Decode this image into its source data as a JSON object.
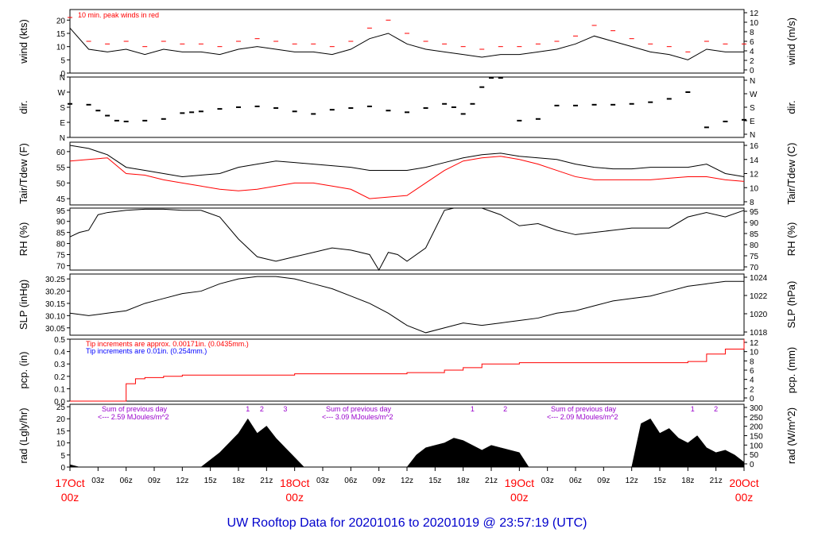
{
  "title": "UW Rooftop Data for 20201016  to  20201019 @ 23:57:19  (UTC)",
  "colors": {
    "black": "#000000",
    "red": "#ff0000",
    "blue": "#0000ff",
    "purple": "#9900cc",
    "title": "#0000cc"
  },
  "chart_data": [
    {
      "type": "line",
      "panel": "wind",
      "ylabel_left": "wind (kts)",
      "ylabel_right": "wind (m/s)",
      "ylim": [
        0,
        24
      ],
      "yticks_left": [
        0,
        5,
        10,
        15,
        20
      ],
      "yticks_right": [
        "0",
        "2",
        "4",
        "6",
        "8",
        "10",
        "12"
      ],
      "annotation": "10 min. peak winds in red",
      "series": [
        {
          "name": "wind",
          "x": [
            0,
            2,
            4,
            6,
            8,
            10,
            12,
            14,
            16,
            18,
            20,
            22,
            24,
            26,
            28,
            30,
            32,
            34,
            36,
            38,
            40,
            42,
            44,
            46,
            48,
            50,
            52,
            54,
            56,
            58,
            60,
            62,
            64,
            66,
            68,
            70,
            72
          ],
          "y": [
            17,
            9,
            8,
            9,
            7,
            9,
            8,
            8,
            7,
            9,
            10,
            9,
            8,
            8,
            7,
            9,
            13,
            15,
            11,
            9,
            8,
            7,
            6,
            7,
            7,
            8,
            9,
            11,
            14,
            12,
            10,
            8,
            7,
            5,
            9,
            8,
            8
          ]
        },
        {
          "name": "peak",
          "x": [
            0,
            2,
            4,
            6,
            8,
            10,
            12,
            14,
            16,
            18,
            20,
            22,
            24,
            26,
            28,
            30,
            32,
            34,
            36,
            38,
            40,
            42,
            44,
            46,
            48,
            50,
            52,
            54,
            56,
            58,
            60,
            62,
            64,
            66,
            68,
            70,
            72
          ],
          "y": [
            21,
            12,
            11,
            12,
            10,
            12,
            11,
            11,
            10,
            12,
            13,
            12,
            11,
            11,
            10,
            12,
            17,
            20,
            15,
            12,
            11,
            10,
            9,
            10,
            10,
            11,
            12,
            14,
            18,
            16,
            13,
            11,
            10,
            8,
            12,
            11,
            11
          ]
        }
      ]
    },
    {
      "type": "scatter",
      "panel": "dir",
      "ylabel_left": "dir.",
      "ylabel_right": "dir.",
      "ylim": [
        0,
        360
      ],
      "yticks_left": [
        "N",
        "E",
        "S",
        "W",
        "N"
      ],
      "yticks_right": [
        "N",
        "E",
        "S",
        "W",
        "N"
      ],
      "series": [
        {
          "name": "direction",
          "x": [
            0,
            2,
            3,
            4,
            5,
            6,
            8,
            10,
            12,
            13,
            14,
            16,
            18,
            20,
            22,
            24,
            26,
            28,
            30,
            32,
            34,
            36,
            38,
            40,
            41,
            42,
            43,
            44,
            45,
            46,
            48,
            50,
            52,
            54,
            56,
            58,
            60,
            62,
            64,
            66,
            68,
            70,
            72
          ],
          "y": [
            200,
            195,
            160,
            130,
            100,
            95,
            100,
            110,
            145,
            150,
            155,
            170,
            180,
            185,
            175,
            155,
            140,
            165,
            175,
            185,
            160,
            150,
            175,
            200,
            180,
            140,
            200,
            300,
            355,
            355,
            100,
            110,
            190,
            190,
            195,
            195,
            200,
            210,
            230,
            270,
            60,
            95,
            105
          ]
        }
      ]
    },
    {
      "type": "line",
      "panel": "temp",
      "ylabel_left": "Tair/Tdew (F)",
      "ylabel_right": "Tair/Tdew (C)",
      "ylim": [
        43,
        63
      ],
      "yticks_left": [
        45,
        50,
        55,
        60
      ],
      "yticks_right": [
        "8",
        "10",
        "12",
        "14",
        "16"
      ],
      "series": [
        {
          "name": "Tair",
          "x": [
            0,
            2,
            4,
            6,
            8,
            10,
            12,
            14,
            16,
            18,
            20,
            22,
            24,
            26,
            28,
            30,
            32,
            34,
            36,
            38,
            40,
            42,
            44,
            46,
            48,
            50,
            52,
            54,
            56,
            58,
            60,
            62,
            64,
            66,
            68,
            70,
            72
          ],
          "y": [
            62,
            61,
            59,
            55,
            54,
            53,
            52,
            52.5,
            53,
            55,
            56,
            57,
            56.5,
            56,
            55.5,
            55,
            54,
            54,
            54,
            55,
            56.5,
            58,
            59,
            59.5,
            58.5,
            58,
            57.5,
            56,
            55,
            54.5,
            54.5,
            55,
            55,
            55,
            56,
            53,
            52
          ]
        },
        {
          "name": "Tdew",
          "x": [
            0,
            2,
            4,
            6,
            8,
            10,
            12,
            14,
            16,
            18,
            20,
            22,
            24,
            26,
            28,
            30,
            32,
            34,
            36,
            38,
            40,
            42,
            44,
            46,
            48,
            50,
            52,
            54,
            56,
            58,
            60,
            62,
            64,
            66,
            68,
            70,
            72
          ],
          "y": [
            57,
            57.5,
            58,
            53,
            52.5,
            51,
            50,
            49,
            48,
            47.5,
            48,
            49,
            50,
            50,
            49,
            48,
            45,
            45.5,
            46,
            50,
            54,
            57,
            58,
            58.5,
            57.5,
            56,
            54,
            52,
            51,
            51,
            51,
            51,
            51.5,
            52,
            52,
            51,
            50.5
          ]
        }
      ]
    },
    {
      "type": "line",
      "panel": "rh",
      "ylabel_left": "RH (%)",
      "ylabel_right": "RH (%)",
      "ylim": [
        68,
        96
      ],
      "yticks_left": [
        70,
        75,
        80,
        85,
        90,
        95
      ],
      "yticks_right": [
        "70",
        "75",
        "80",
        "85",
        "90",
        "95"
      ],
      "series": [
        {
          "name": "RH",
          "x": [
            0,
            1,
            2,
            3,
            4,
            6,
            8,
            10,
            12,
            14,
            16,
            18,
            20,
            22,
            24,
            26,
            28,
            30,
            32,
            33,
            34,
            35,
            36,
            38,
            40,
            41,
            42,
            44,
            46,
            48,
            50,
            52,
            54,
            56,
            58,
            60,
            62,
            64,
            66,
            68,
            70,
            72
          ],
          "y": [
            83,
            85,
            86,
            93,
            94,
            95,
            95.5,
            95.5,
            95,
            95,
            92,
            82,
            74,
            72,
            74,
            76,
            78,
            77,
            75,
            68,
            76,
            75,
            72,
            78,
            95,
            96,
            96,
            96,
            93,
            88,
            89,
            86,
            84,
            85,
            86,
            87,
            87,
            87,
            92,
            94,
            92,
            95
          ]
        }
      ]
    },
    {
      "type": "line",
      "panel": "slp",
      "ylabel_left": "SLP (inHg)",
      "ylabel_right": "SLP (hPa)",
      "ylim": [
        30.02,
        30.27
      ],
      "yticks_left": [
        "30.05",
        "30.10",
        "30.15",
        "30.20",
        "30.25"
      ],
      "yticks_right": [
        "1018",
        "1020",
        "1022",
        "1024"
      ],
      "series": [
        {
          "name": "SLP",
          "x": [
            0,
            2,
            4,
            6,
            8,
            10,
            12,
            14,
            16,
            18,
            20,
            22,
            24,
            26,
            28,
            30,
            32,
            34,
            36,
            38,
            40,
            42,
            44,
            46,
            48,
            50,
            52,
            54,
            56,
            58,
            60,
            62,
            64,
            66,
            68,
            70,
            72
          ],
          "y": [
            30.11,
            30.1,
            30.11,
            30.12,
            30.15,
            30.17,
            30.19,
            30.2,
            30.23,
            30.25,
            30.26,
            30.26,
            30.25,
            30.23,
            30.21,
            30.18,
            30.15,
            30.11,
            30.06,
            30.03,
            30.05,
            30.07,
            30.06,
            30.07,
            30.08,
            30.09,
            30.11,
            30.12,
            30.14,
            30.16,
            30.17,
            30.18,
            30.2,
            30.22,
            30.23,
            30.24,
            30.24
          ]
        }
      ]
    },
    {
      "type": "line",
      "panel": "pcp",
      "ylabel_left": "pcp. (in)",
      "ylabel_right": "pcp. (mm)",
      "ylim": [
        0,
        0.5
      ],
      "yticks_left": [
        "0.0",
        "0.1",
        "0.2",
        "0.3",
        "0.4",
        "0.5"
      ],
      "yticks_right": [
        "0",
        "2",
        "4",
        "6",
        "8",
        "10",
        "12"
      ],
      "annotation_red": "Tip increments are approx. 0.00171in. (0.0435mm.)",
      "annotation_blue": "Tip increments are 0.01in. (0.254mm.)",
      "series": [
        {
          "name": "pcp",
          "x": [
            0,
            5,
            6,
            7,
            8,
            10,
            12,
            18,
            24,
            30,
            36,
            40,
            42,
            44,
            48,
            54,
            60,
            66,
            68,
            70,
            72
          ],
          "y": [
            0,
            0,
            0.14,
            0.18,
            0.19,
            0.2,
            0.21,
            0.21,
            0.22,
            0.22,
            0.23,
            0.25,
            0.27,
            0.3,
            0.31,
            0.31,
            0.31,
            0.32,
            0.38,
            0.42,
            0.5
          ]
        }
      ]
    },
    {
      "type": "area",
      "panel": "rad",
      "ylabel_left": "rad (Lgly/hr)",
      "ylabel_right": "rad (W/m^2)",
      "ylim": [
        0,
        26
      ],
      "yticks_left": [
        0,
        5,
        10,
        15,
        20,
        25
      ],
      "yticks_right": [
        "0",
        "50",
        "100",
        "150",
        "200",
        "250",
        "300"
      ],
      "day_sums": [
        {
          "label": "Sum of previous day",
          "value": "<--- 2.59 MJoules/m^2"
        },
        {
          "label": "Sum of previous day",
          "value": "<--- 3.09 MJoules/m^2"
        },
        {
          "label": "Sum of previous day",
          "value": "<--- 2.09 MJoules/m^2"
        }
      ],
      "markers": [
        {
          "text": "1",
          "x": 19
        },
        {
          "text": "2",
          "x": 20.5
        },
        {
          "text": "3",
          "x": 23
        },
        {
          "text": "1",
          "x": 43
        },
        {
          "text": "2",
          "x": 46.5
        },
        {
          "text": "1",
          "x": 66.5
        },
        {
          "text": "2",
          "x": 69
        }
      ],
      "series": [
        {
          "name": "radiation",
          "x": [
            0,
            1,
            12,
            14,
            15,
            16,
            17,
            18,
            19,
            20,
            21,
            22,
            23,
            24,
            25,
            35,
            36,
            37,
            38,
            39,
            40,
            41,
            42,
            43,
            44,
            45,
            46,
            47,
            48,
            49,
            58,
            59,
            60,
            61,
            62,
            63,
            64,
            65,
            66,
            67,
            68,
            69,
            70,
            71,
            72
          ],
          "y": [
            1,
            0,
            0,
            0,
            3,
            6,
            10,
            14,
            20,
            14,
            17,
            12,
            8,
            4,
            0,
            0,
            0,
            5,
            8,
            9,
            10,
            12,
            11,
            9,
            7,
            9,
            8,
            7,
            6,
            0,
            0,
            0,
            0,
            18,
            20,
            14,
            16,
            12,
            10,
            13,
            8,
            6,
            7,
            5,
            2
          ]
        }
      ]
    }
  ],
  "x_axis": {
    "range": [
      0,
      72
    ],
    "ticks": [
      {
        "x": 0,
        "label": "17Oct",
        "sub": "00z",
        "major": true
      },
      {
        "x": 3,
        "label": "03z"
      },
      {
        "x": 6,
        "label": "06z"
      },
      {
        "x": 9,
        "label": "09z"
      },
      {
        "x": 12,
        "label": "12z"
      },
      {
        "x": 15,
        "label": "15z"
      },
      {
        "x": 18,
        "label": "18z"
      },
      {
        "x": 21,
        "label": "21z"
      },
      {
        "x": 24,
        "label": "18Oct",
        "sub": "00z",
        "major": true
      },
      {
        "x": 27,
        "label": "03z"
      },
      {
        "x": 30,
        "label": "06z"
      },
      {
        "x": 33,
        "label": "09z"
      },
      {
        "x": 36,
        "label": "12z"
      },
      {
        "x": 39,
        "label": "15z"
      },
      {
        "x": 42,
        "label": "18z"
      },
      {
        "x": 45,
        "label": "21z"
      },
      {
        "x": 48,
        "label": "19Oct",
        "sub": "00z",
        "major": true
      },
      {
        "x": 51,
        "label": "03z"
      },
      {
        "x": 54,
        "label": "06z"
      },
      {
        "x": 57,
        "label": "09z"
      },
      {
        "x": 60,
        "label": "12z"
      },
      {
        "x": 63,
        "label": "15z"
      },
      {
        "x": 66,
        "label": "18z"
      },
      {
        "x": 69,
        "label": "21z"
      },
      {
        "x": 72,
        "label": "20Oct",
        "sub": "00z",
        "major": true
      }
    ]
  }
}
